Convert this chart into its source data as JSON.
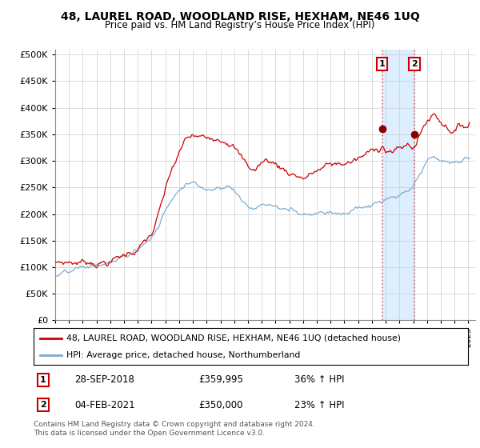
{
  "title": "48, LAUREL ROAD, WOODLAND RISE, HEXHAM, NE46 1UQ",
  "subtitle": "Price paid vs. HM Land Registry’s House Price Index (HPI)",
  "ytick_values": [
    0,
    50000,
    100000,
    150000,
    200000,
    250000,
    300000,
    350000,
    400000,
    450000,
    500000
  ],
  "ylim": [
    0,
    510000
  ],
  "xlim_start": 1995.0,
  "xlim_end": 2025.5,
  "legend_line1": "48, LAUREL ROAD, WOODLAND RISE, HEXHAM, NE46 1UQ (detached house)",
  "legend_line2": "HPI: Average price, detached house, Northumberland",
  "annotation1_date": "28-SEP-2018",
  "annotation1_price": "£359,995",
  "annotation1_hpi": "36% ↑ HPI",
  "annotation2_date": "04-FEB-2021",
  "annotation2_price": "£350,000",
  "annotation2_hpi": "23% ↑ HPI",
  "footer": "Contains HM Land Registry data © Crown copyright and database right 2024.\nThis data is licensed under the Open Government Licence v3.0.",
  "sale1_x": 2018.75,
  "sale1_y": 359995,
  "sale2_x": 2021.08,
  "sale2_y": 350000,
  "red_color": "#cc0000",
  "blue_color": "#7aadd4",
  "highlight_bg": "#ddeeff",
  "vline_color": "#dd6666"
}
